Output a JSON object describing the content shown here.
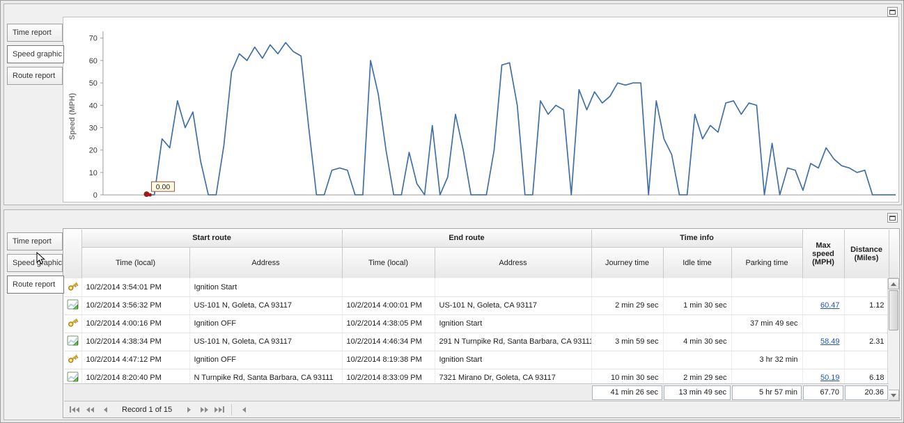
{
  "top_panel": {
    "tabs": [
      {
        "label": "Time report",
        "selected": false
      },
      {
        "label": "Speed graphic",
        "selected": true
      },
      {
        "label": "Route report",
        "selected": false
      }
    ],
    "chart_data": {
      "type": "line",
      "title": "",
      "xlabel": "",
      "ylabel": "Speed (MPH)",
      "ylim": [
        0,
        70
      ],
      "yticks": [
        0,
        10,
        20,
        30,
        40,
        50,
        60,
        70
      ],
      "grid": false,
      "legend": "none",
      "line_color": "#3f6fa8",
      "marker": {
        "label": "0.00",
        "color": "#9b1c1c",
        "tooltip_bg": "#fffbe3",
        "tooltip_border": "#95533f"
      },
      "values": [
        0,
        0,
        25,
        21,
        42,
        30,
        37,
        15,
        0,
        0,
        22,
        55,
        63,
        60,
        66,
        61,
        67,
        63,
        68,
        64,
        62,
        30,
        0,
        0,
        11,
        12,
        11,
        0,
        0,
        60,
        45,
        20,
        0,
        0,
        19,
        5,
        0,
        31,
        0,
        8,
        36,
        20,
        0,
        0,
        0,
        20,
        58,
        59,
        40,
        0,
        0,
        42,
        36,
        40,
        38,
        0,
        47,
        38,
        46,
        41,
        44,
        50,
        49,
        50,
        50,
        0,
        42,
        25,
        18,
        0,
        0,
        36,
        25,
        31,
        28,
        41,
        42,
        36,
        41,
        40,
        0,
        23,
        0,
        12,
        11,
        2,
        14,
        12,
        21,
        16,
        13,
        12,
        10,
        11,
        0,
        0,
        0,
        0
      ]
    }
  },
  "bottom_panel": {
    "tabs": [
      {
        "label": "Time report",
        "selected": false
      },
      {
        "label": "Speed graphic",
        "selected": false
      },
      {
        "label": "Route report",
        "selected": true
      }
    ],
    "table": {
      "column_groups": [
        {
          "label": "Start route"
        },
        {
          "label": "End route"
        },
        {
          "label": "Time info"
        }
      ],
      "columns": [
        "Time (local)",
        "Address",
        "Time (local)",
        "Address",
        "Journey time",
        "Idle time",
        "Parking time",
        "Max speed (MPH)",
        "Distance (Miles)"
      ],
      "rows": [
        {
          "icon": "key",
          "start_time": "10/2/2014 3:54:01 PM",
          "start_address": "Ignition Start",
          "end_time": "",
          "end_address": "",
          "journey_time": "",
          "idle_time": "",
          "parking_time": "",
          "max_speed": "",
          "max_speed_link": false,
          "distance": ""
        },
        {
          "icon": "route",
          "start_time": "10/2/2014 3:56:32 PM",
          "start_address": "US-101 N, Goleta, CA 93117",
          "end_time": "10/2/2014 4:00:01 PM",
          "end_address": "US-101 N, Goleta, CA 93117",
          "journey_time": "2 min 29 sec",
          "idle_time": "1 min 30 sec",
          "parking_time": "",
          "max_speed": "60.47",
          "max_speed_link": true,
          "distance": "1.12"
        },
        {
          "icon": "key",
          "start_time": "10/2/2014 4:00:16 PM",
          "start_address": "Ignition OFF",
          "end_time": "10/2/2014 4:38:05 PM",
          "end_address": "Ignition Start",
          "journey_time": "",
          "idle_time": "",
          "parking_time": "37 min 49 sec",
          "max_speed": "",
          "max_speed_link": false,
          "distance": ""
        },
        {
          "icon": "route",
          "start_time": "10/2/2014 4:38:34 PM",
          "start_address": "US-101 N, Goleta, CA 93117",
          "end_time": "10/2/2014 4:46:34 PM",
          "end_address": "291 N Turnpike Rd, Santa Barbara, CA 93111",
          "journey_time": "3 min 59 sec",
          "idle_time": "4 min 30 sec",
          "parking_time": "",
          "max_speed": "58.49",
          "max_speed_link": true,
          "distance": "2.31"
        },
        {
          "icon": "key",
          "start_time": "10/2/2014 4:47:12 PM",
          "start_address": "Ignition OFF",
          "end_time": "10/2/2014 8:19:38 PM",
          "end_address": "Ignition Start",
          "journey_time": "",
          "idle_time": "",
          "parking_time": "3 hr 32 min",
          "max_speed": "",
          "max_speed_link": false,
          "distance": ""
        },
        {
          "icon": "route",
          "start_time": "10/2/2014 8:20:40 PM",
          "start_address": "N Turnpike Rd, Santa Barbara, CA 93111",
          "end_time": "10/2/2014 8:33:09 PM",
          "end_address": "7321 Mirano Dr, Goleta, CA 93117",
          "journey_time": "10 min 30 sec",
          "idle_time": "2 min 29 sec",
          "parking_time": "",
          "max_speed": "50.19",
          "max_speed_link": true,
          "distance": "6.18"
        }
      ],
      "summary": {
        "journey_time": "41 min 26 sec",
        "idle_time": "13 min 49 sec",
        "parking_time": "5 hr 57 min",
        "max_speed": "67.70",
        "distance": "20.36"
      }
    },
    "record_nav": {
      "label": "Record 1 of 15"
    }
  }
}
